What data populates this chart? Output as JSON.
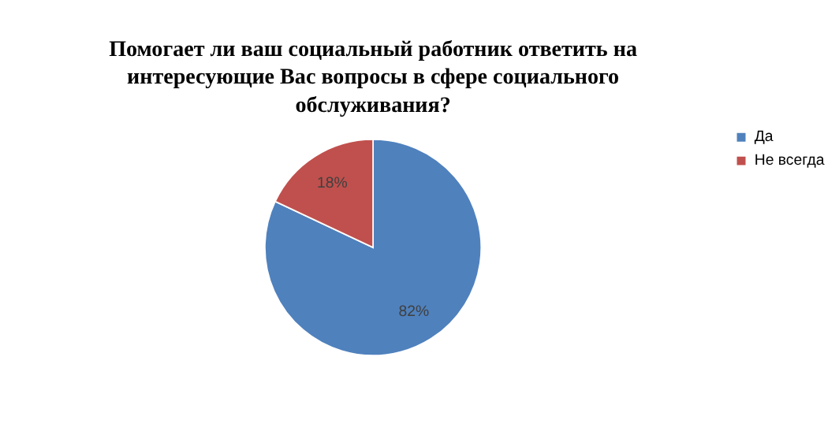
{
  "chart_data": {
    "type": "pie",
    "title": "Помогает ли ваш социальный работник ответить на интересующие Вас вопросы в сфере социального обслуживания?",
    "categories": [
      "Да",
      "Не всегда"
    ],
    "values": [
      82,
      18
    ],
    "colors": [
      "#4f81bd",
      "#c0504d"
    ],
    "value_labels": [
      "82%",
      "18%"
    ],
    "legend": "right"
  }
}
